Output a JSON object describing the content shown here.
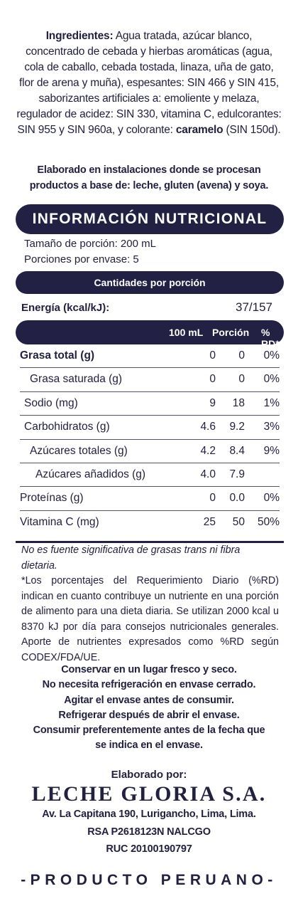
{
  "ingredients": {
    "label": "Ingredientes:",
    "text": " Agua tratada, azúcar blanco, concentrado de cebada y hierbas aromáticas (agua, cola de caballo, cebada tostada, linaza, uña de gato, flor de arena y muña), espesantes: SIN 466 y SIN 415, saborizantes artificiales a: emoliente y melaza, regulador de acidez: SIN 330, vitamina C, edulcorantes: SIN 955 y SIN 960a, y colorante: ",
    "bold_end": "caramelo",
    "end": " (SIN 150d)."
  },
  "warning": "Elaborado en instalaciones donde se procesan productos a base de: leche, gluten (avena) y soya.",
  "nutrition": {
    "title": "INFORMACIÓN NUTRICIONAL",
    "serving_size": "Tamaño de porción: 200 mL",
    "servings_per_container": "Porciones por envase: 5",
    "amounts_header": "Cantidades por porción",
    "energy_label": "Energía (kcal/kJ):",
    "energy_value": "37/157",
    "columns": [
      "100 mL",
      "Porción",
      "% RD*"
    ],
    "rows": [
      {
        "label": "Grasa total (g)",
        "v100": "0",
        "portion": "0",
        "rd": "0%"
      },
      {
        "label": "Grasa saturada (g)",
        "v100": "0",
        "portion": "0",
        "rd": "0%"
      },
      {
        "label": "Sodio (mg)",
        "v100": "9",
        "portion": "18",
        "rd": "1%"
      },
      {
        "label": "Carbohidratos (g)",
        "v100": "4.6",
        "portion": "9.2",
        "rd": "3%"
      },
      {
        "label": "Azúcares totales (g)",
        "v100": "4.2",
        "portion": "8.4",
        "rd": "9%"
      },
      {
        "label": "Azúcares añadidos (g)",
        "v100": "4.0",
        "portion": "7.9",
        "rd": ""
      },
      {
        "label": "Proteínas (g)",
        "v100": "0",
        "portion": "0.0",
        "rd": "0%"
      },
      {
        "label": "Vitamina C (mg)",
        "v100": "25",
        "portion": "50",
        "rd": "50%"
      }
    ],
    "note_italic": "No es fuente significativa de grasas trans ni fibra dietaria.",
    "note": "*Los porcentajes del Requerimiento Diario (%RD) indican en cuanto contribuye un nutriente en una porción de alimento para una dieta diaria. Se utilizan 2000 kcal u 8370 kJ por día para consejos nutricionales generales. Aporte de nutrientes expresados como %RD según CODEX/FDA/UE."
  },
  "storage": [
    "Conservar en un lugar fresco y seco.",
    "No necesita refrigeración en envase cerrado.",
    "Agitar el envase antes de consumir.",
    "Refrigerar después de abrir el envase.",
    "Consumir preferentemente antes de la fecha que",
    "se indica en el envase."
  ],
  "maker": {
    "label": "Elaborado por:",
    "name": "LECHE GLORIA S.A.",
    "address": "Av. La Capitana 190, Lurigancho, Lima, Lima.",
    "rsa": "RSA P2618123N NALCGO",
    "ruc": "RUC 20100190797"
  },
  "origin": "-PRODUCTO PERUANO-",
  "colors": {
    "navy": "#222043",
    "text": "#22213f",
    "background": "#ffffff"
  }
}
